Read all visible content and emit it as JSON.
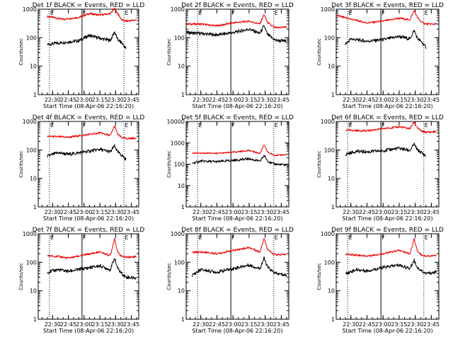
{
  "figure": {
    "background": "#ffffff",
    "events_color": "#000000",
    "lld_color": "#ee0000",
    "axis_color": "#000000"
  },
  "chart_data": [
    {
      "type": "line",
      "title": "Det 1f BLACK = Events, RED = LLD",
      "xlabel": "Start Time (08-Apr-06 22:16:20)",
      "ylabel": "Counts/sec",
      "yscale": "log",
      "ylim": [
        1,
        1000
      ],
      "y_ticks": [
        "1",
        "10",
        "100",
        "1000"
      ],
      "x_ticks": [
        "22:30",
        "22:45",
        "23:00",
        "23:15",
        "23:30",
        "23:45"
      ],
      "x_tick_minutes": [
        30,
        45,
        60,
        75,
        90,
        105
      ],
      "xlim_minutes": [
        16.33,
        112
      ],
      "markers": [
        {
          "label": "E",
          "minute": 27
        },
        {
          "label": "F",
          "minute": 58
        },
        {
          "label": "E",
          "minute": 98
        }
      ],
      "dotted_lines_minutes": [
        27,
        98
      ],
      "solid_lines_minutes": [
        58
      ],
      "series": [
        {
          "color": "#ee0000",
          "x": [
            25,
            40,
            55,
            65,
            75,
            85,
            89,
            92,
            96,
            100,
            110
          ],
          "values": [
            560,
            440,
            520,
            700,
            620,
            700,
            1050,
            700,
            420,
            380,
            420
          ]
        },
        {
          "color": "#000000",
          "x": [
            25,
            40,
            55,
            65,
            75,
            85,
            89,
            92,
            96,
            100
          ],
          "values": [
            58,
            68,
            78,
            120,
            95,
            80,
            160,
            85,
            65,
            40
          ]
        }
      ]
    },
    {
      "type": "line",
      "title": "Det 2f BLACK = Events, RED = LLD",
      "xlabel": "Start Time (08-Apr-06 22:16:20)",
      "ylabel": "Counts/sec",
      "yscale": "log",
      "ylim": [
        1,
        1000
      ],
      "y_ticks": [
        "1",
        "10",
        "100",
        "1000"
      ],
      "x_ticks": [
        "22:30",
        "22:45",
        "23:00",
        "23:15",
        "23:30",
        "23:45"
      ],
      "x_tick_minutes": [
        30,
        45,
        60,
        75,
        90,
        105
      ],
      "xlim_minutes": [
        16.33,
        112
      ],
      "markers": [
        {
          "label": "E",
          "minute": 27
        },
        {
          "label": "F",
          "minute": 58
        },
        {
          "label": "E",
          "minute": 98
        }
      ],
      "dotted_lines_minutes": [
        27,
        98
      ],
      "solid_lines_minutes": [
        58
      ],
      "series": [
        {
          "color": "#ee0000",
          "x": [
            17,
            30,
            45,
            60,
            75,
            85,
            89,
            92,
            96,
            100,
            110
          ],
          "values": [
            300,
            300,
            260,
            330,
            380,
            300,
            650,
            350,
            260,
            220,
            240
          ]
        },
        {
          "color": "#000000",
          "x": [
            17,
            30,
            45,
            60,
            75,
            85,
            89,
            92,
            96,
            100,
            110
          ],
          "values": [
            150,
            140,
            125,
            150,
            200,
            140,
            260,
            130,
            100,
            80,
            75
          ]
        }
      ]
    },
    {
      "type": "line",
      "title": "Det 3f BLACK = Events, RED = LLD",
      "xlabel": "Start Time (08-Apr-06 22:16:20)",
      "ylabel": "Counts/sec",
      "yscale": "log",
      "ylim": [
        1,
        1000
      ],
      "y_ticks": [
        "1",
        "10",
        "100",
        "1000"
      ],
      "x_ticks": [
        "22:30",
        "22:45",
        "23:00",
        "23:15",
        "23:30",
        "23:45"
      ],
      "x_tick_minutes": [
        30,
        45,
        60,
        75,
        90,
        105
      ],
      "xlim_minutes": [
        16.33,
        112
      ],
      "markers": [
        {
          "label": "E",
          "minute": 27
        },
        {
          "label": "F",
          "minute": 58
        },
        {
          "label": "E",
          "minute": 98
        }
      ],
      "dotted_lines_minutes": [
        27,
        98
      ],
      "solid_lines_minutes": [
        58
      ],
      "series": [
        {
          "color": "#ee0000",
          "x": [
            17,
            30,
            45,
            60,
            75,
            85,
            89,
            92,
            96,
            100,
            110
          ],
          "values": [
            600,
            450,
            330,
            380,
            480,
            420,
            900,
            500,
            350,
            300,
            300
          ]
        },
        {
          "color": "#000000",
          "x": [
            25,
            30,
            45,
            60,
            75,
            85,
            89,
            92,
            96,
            100
          ],
          "values": [
            60,
            90,
            75,
            85,
            110,
            90,
            180,
            95,
            70,
            45
          ]
        }
      ]
    },
    {
      "type": "line",
      "title": "Det 4f BLACK = Events, RED = LLD",
      "xlabel": "Start Time (08-Apr-06 22:16:20)",
      "ylabel": "Counts/sec",
      "yscale": "log",
      "ylim": [
        1,
        1000
      ],
      "y_ticks": [
        "1",
        "10",
        "100",
        "1000"
      ],
      "x_ticks": [
        "22:30",
        "22:45",
        "23:00",
        "23:15",
        "23:30",
        "23:45"
      ],
      "x_tick_minutes": [
        30,
        45,
        60,
        75,
        90,
        105
      ],
      "xlim_minutes": [
        16.33,
        112
      ],
      "markers": [
        {
          "label": "E",
          "minute": 27
        },
        {
          "label": "F",
          "minute": 58
        },
        {
          "label": "E",
          "minute": 98
        }
      ],
      "dotted_lines_minutes": [
        27,
        98
      ],
      "solid_lines_minutes": [
        58
      ],
      "series": [
        {
          "color": "#ee0000",
          "x": [
            25,
            35,
            45,
            60,
            75,
            85,
            89,
            92,
            96,
            100,
            110
          ],
          "values": [
            300,
            290,
            280,
            330,
            400,
            320,
            700,
            350,
            270,
            250,
            260
          ]
        },
        {
          "color": "#000000",
          "x": [
            25,
            35,
            45,
            60,
            75,
            85,
            89,
            92,
            96,
            100
          ],
          "values": [
            60,
            80,
            70,
            85,
            105,
            85,
            140,
            85,
            65,
            45
          ]
        }
      ]
    },
    {
      "type": "line",
      "title": "Det 5f BLACK = Events, RED = LLD",
      "xlabel": "Start Time (08-Apr-06 22:16:20)",
      "ylabel": "Counts/sec",
      "yscale": "log",
      "ylim": [
        1,
        10000
      ],
      "y_ticks": [
        "1",
        "10",
        "100",
        "1000",
        "10000"
      ],
      "x_ticks": [
        "22:30",
        "22:45",
        "23:00",
        "23:15",
        "23:30",
        "23:45"
      ],
      "x_tick_minutes": [
        30,
        45,
        60,
        75,
        90,
        105
      ],
      "xlim_minutes": [
        16.33,
        112
      ],
      "markers": [
        {
          "label": "E",
          "minute": 27
        },
        {
          "label": "F",
          "minute": 58
        },
        {
          "label": "E",
          "minute": 98
        }
      ],
      "dotted_lines_minutes": [
        27,
        98
      ],
      "solid_lines_minutes": [
        58
      ],
      "series": [
        {
          "color": "#ee0000",
          "x": [
            22,
            30,
            45,
            60,
            75,
            85,
            89,
            92,
            96,
            100,
            110
          ],
          "values": [
            330,
            330,
            320,
            360,
            440,
            320,
            800,
            380,
            290,
            260,
            280
          ]
        },
        {
          "color": "#000000",
          "x": [
            22,
            30,
            45,
            60,
            75,
            85,
            89,
            92,
            96,
            100,
            110
          ],
          "values": [
            110,
            140,
            130,
            150,
            180,
            135,
            260,
            150,
            110,
            100,
            90
          ]
        }
      ]
    },
    {
      "type": "line",
      "title": "Det 6f BLACK = Events, RED = LLD",
      "xlabel": "Start Time (08-Apr-06 22:16:20)",
      "ylabel": "Counts/sec",
      "yscale": "log",
      "ylim": [
        1,
        1000
      ],
      "y_ticks": [
        "1",
        "10",
        "100",
        "1000"
      ],
      "x_ticks": [
        "22:30",
        "22:45",
        "23:00",
        "23:15",
        "23:30",
        "23:45"
      ],
      "x_tick_minutes": [
        30,
        45,
        60,
        75,
        90,
        105
      ],
      "xlim_minutes": [
        16.33,
        112
      ],
      "markers": [
        {
          "label": "E",
          "minute": 27
        },
        {
          "label": "F",
          "minute": 58
        },
        {
          "label": "E",
          "minute": 98
        }
      ],
      "dotted_lines_minutes": [
        27,
        98
      ],
      "solid_lines_minutes": [
        58
      ],
      "series": [
        {
          "color": "#ee0000",
          "x": [
            25,
            35,
            45,
            60,
            75,
            85,
            89,
            92,
            96,
            100,
            110
          ],
          "values": [
            500,
            480,
            470,
            560,
            650,
            560,
            950,
            600,
            450,
            420,
            440
          ]
        },
        {
          "color": "#000000",
          "x": [
            25,
            35,
            45,
            60,
            75,
            85,
            89,
            92,
            96,
            100
          ],
          "values": [
            70,
            90,
            85,
            95,
            115,
            95,
            160,
            100,
            80,
            60
          ]
        }
      ]
    },
    {
      "type": "line",
      "title": "Det 7f BLACK = Events, RED = LLD",
      "xlabel": "Start Time (08-Apr-06 22:16:20)",
      "ylabel": "Counts/sec",
      "yscale": "log",
      "ylim": [
        1,
        1000
      ],
      "y_ticks": [
        "1",
        "10",
        "100",
        "1000"
      ],
      "x_ticks": [
        "22:30",
        "22:45",
        "23:00",
        "23:15",
        "23:30",
        "23:45"
      ],
      "x_tick_minutes": [
        30,
        45,
        60,
        75,
        90,
        105
      ],
      "xlim_minutes": [
        16.33,
        112
      ],
      "markers": [
        {
          "label": "E",
          "minute": 27
        },
        {
          "label": "F",
          "minute": 58
        },
        {
          "label": "E",
          "minute": 98
        }
      ],
      "dotted_lines_minutes": [
        27,
        98
      ],
      "solid_lines_minutes": [
        58
      ],
      "series": [
        {
          "color": "#ee0000",
          "x": [
            25,
            35,
            45,
            60,
            75,
            85,
            89,
            92,
            96,
            100,
            110
          ],
          "values": [
            170,
            160,
            140,
            180,
            230,
            170,
            700,
            220,
            160,
            150,
            160
          ]
        },
        {
          "color": "#000000",
          "x": [
            25,
            35,
            45,
            60,
            75,
            85,
            89,
            92,
            96,
            100,
            110
          ],
          "values": [
            45,
            55,
            48,
            60,
            75,
            55,
            140,
            60,
            40,
            30,
            28
          ]
        }
      ]
    },
    {
      "type": "line",
      "title": "Det 8f BLACK = Events, RED = LLD",
      "xlabel": "Start Time (08-Apr-06 22:16:20)",
      "ylabel": "Counts/sec",
      "yscale": "log",
      "ylim": [
        1,
        1000
      ],
      "y_ticks": [
        "1",
        "10",
        "100",
        "1000"
      ],
      "x_ticks": [
        "22:30",
        "22:45",
        "23:00",
        "23:15",
        "23:30",
        "23:45"
      ],
      "x_tick_minutes": [
        30,
        45,
        60,
        75,
        90,
        105
      ],
      "xlim_minutes": [
        16.33,
        112
      ],
      "markers": [
        {
          "label": "E",
          "minute": 27
        },
        {
          "label": "F",
          "minute": 58
        },
        {
          "label": "E",
          "minute": 98
        }
      ],
      "dotted_lines_minutes": [
        27,
        98
      ],
      "solid_lines_minutes": [
        58
      ],
      "series": [
        {
          "color": "#ee0000",
          "x": [
            22,
            30,
            45,
            60,
            75,
            85,
            89,
            92,
            96,
            100,
            110
          ],
          "values": [
            220,
            230,
            200,
            260,
            330,
            230,
            700,
            300,
            210,
            180,
            190
          ]
        },
        {
          "color": "#000000",
          "x": [
            22,
            30,
            45,
            60,
            75,
            85,
            89,
            92,
            96,
            100,
            110
          ],
          "values": [
            35,
            55,
            45,
            60,
            80,
            60,
            140,
            70,
            50,
            40,
            35
          ]
        }
      ]
    },
    {
      "type": "line",
      "title": "Det 9f BLACK = Events, RED = LLD",
      "xlabel": "Start Time (08-Apr-06 22:16:20)",
      "ylabel": "Counts/sec",
      "yscale": "log",
      "ylim": [
        1,
        1000
      ],
      "y_ticks": [
        "1",
        "10",
        "100",
        "1000"
      ],
      "x_ticks": [
        "22:30",
        "22:45",
        "23:00",
        "23:15",
        "23:30",
        "23:45"
      ],
      "x_tick_minutes": [
        30,
        45,
        60,
        75,
        90,
        105
      ],
      "xlim_minutes": [
        16.33,
        112
      ],
      "markers": [
        {
          "label": "E",
          "minute": 27
        },
        {
          "label": "F",
          "minute": 58
        },
        {
          "label": "E",
          "minute": 98
        }
      ],
      "dotted_lines_minutes": [
        27,
        98
      ],
      "solid_lines_minutes": [
        58
      ],
      "series": [
        {
          "color": "#ee0000",
          "x": [
            25,
            35,
            45,
            60,
            75,
            85,
            89,
            92,
            96,
            100,
            110
          ],
          "values": [
            190,
            180,
            165,
            200,
            260,
            200,
            650,
            250,
            180,
            165,
            170
          ]
        },
        {
          "color": "#000000",
          "x": [
            25,
            35,
            45,
            60,
            75,
            85,
            89,
            92,
            96,
            100,
            110
          ],
          "values": [
            40,
            55,
            50,
            65,
            80,
            60,
            120,
            65,
            50,
            40,
            45
          ]
        }
      ]
    }
  ]
}
